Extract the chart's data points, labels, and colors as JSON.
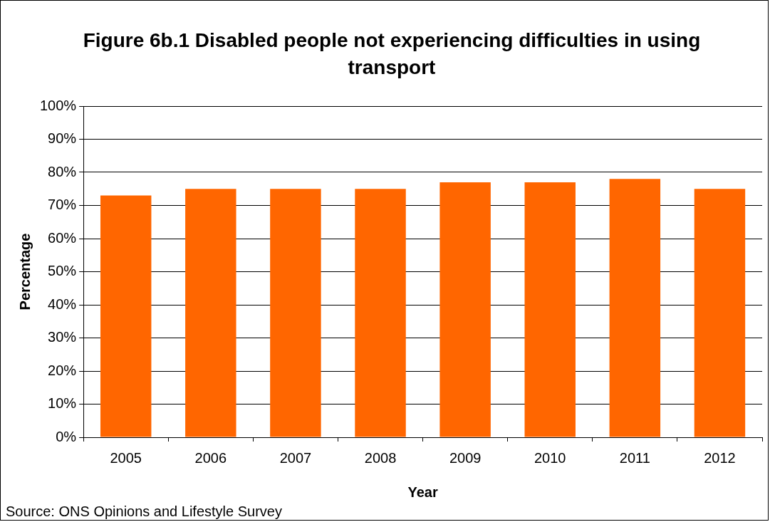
{
  "chart_data": {
    "type": "bar",
    "title": "Figure 6b.1 Disabled people not experiencing difficulties in using transport",
    "xlabel": "Year",
    "ylabel": "Percentage",
    "categories": [
      "2005",
      "2006",
      "2007",
      "2008",
      "2009",
      "2010",
      "2011",
      "2012"
    ],
    "values": [
      73,
      75,
      75,
      75,
      77,
      77,
      78,
      75
    ],
    "color": "#ff6600",
    "ylim": [
      0,
      100
    ],
    "yticks": [
      {
        "value": 0,
        "label": "0%"
      },
      {
        "value": 10,
        "label": "10%"
      },
      {
        "value": 20,
        "label": "20%"
      },
      {
        "value": 30,
        "label": "30%"
      },
      {
        "value": 40,
        "label": "40%"
      },
      {
        "value": 50,
        "label": "50%"
      },
      {
        "value": 60,
        "label": "60%"
      },
      {
        "value": 70,
        "label": "70%"
      },
      {
        "value": 80,
        "label": "80%"
      },
      {
        "value": 90,
        "label": "90%"
      },
      {
        "value": 100,
        "label": "100%"
      }
    ],
    "grid": "y",
    "annotations": [
      "Source: ONS Opinions and Lifestyle Survey"
    ]
  }
}
